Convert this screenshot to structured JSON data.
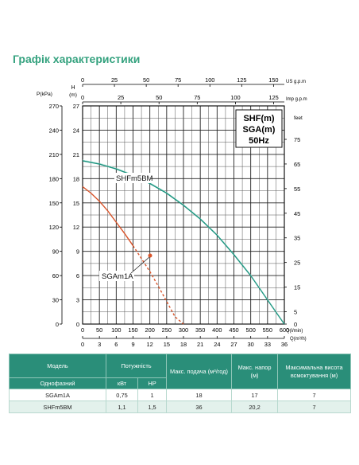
{
  "page_title": "Графік характеристики",
  "chart_data": {
    "type": "line",
    "xlabel": "Q(l/min)",
    "xlabel_m3": "Q(m³/h)",
    "ylabel_m": "(m)",
    "ylabel_m_letter": "H",
    "ylabel_kpa": "P(kPa)",
    "ylabel_feet": "feet",
    "top_axis_usgpm_label": "US g.p.m",
    "top_axis_imp_label": "Imp g.p.m",
    "xlim_lmin": [
      0,
      600
    ],
    "ylim_m": [
      0,
      27
    ],
    "bottom_ticks_lmin": [
      "0",
      "50",
      "100",
      "150",
      "200",
      "250",
      "300",
      "350",
      "400",
      "450",
      "500",
      "550",
      "600"
    ],
    "bottom_ticks_m3h": [
      "0",
      "3",
      "6",
      "9",
      "12",
      "15",
      "18",
      "21",
      "24",
      "27",
      "30",
      "33",
      "36"
    ],
    "top_ticks_usgpm": [
      "0",
      "25",
      "50",
      "75",
      "100",
      "125",
      "150"
    ],
    "top_ticks_imp": [
      "0",
      "25",
      "50",
      "75",
      "100",
      "125"
    ],
    "left_ticks_m": [
      "0",
      "3",
      "6",
      "9",
      "12",
      "15",
      "18",
      "21",
      "24",
      "27"
    ],
    "left_ticks_kpa": [
      "0",
      "30",
      "60",
      "90",
      "120",
      "150",
      "180",
      "210",
      "240",
      "270"
    ],
    "right_ticks_feet": [
      "0",
      "5",
      "15",
      "25",
      "35",
      "45",
      "55",
      "65",
      "75"
    ],
    "grid": true,
    "legend_box": [
      "SHF(m)",
      "SGA(m)",
      "50Hz"
    ],
    "series": [
      {
        "name": "SHFm5BM",
        "color": "#1e9480",
        "dashed": false,
        "x": [
          0,
          50,
          100,
          150,
          200,
          250,
          300,
          350,
          400,
          450,
          500,
          550,
          600
        ],
        "y": [
          20.2,
          19.8,
          19.2,
          18.4,
          17.4,
          16.2,
          14.7,
          13.0,
          11.0,
          8.6,
          6.0,
          3.0,
          0
        ]
      },
      {
        "name": "SGAm1A",
        "color": "#d8542a",
        "dashed_from_x": 170,
        "x": [
          0,
          25,
          50,
          75,
          100,
          125,
          150,
          175,
          200,
          225,
          250,
          275,
          300
        ],
        "y": [
          17.0,
          16.2,
          15.2,
          14.0,
          12.6,
          11.2,
          9.7,
          8.1,
          6.5,
          4.7,
          2.8,
          0.9,
          0
        ]
      }
    ]
  },
  "table": {
    "headers": {
      "model": "Модель",
      "power": "Потужність",
      "max_flow": "Макс. подача (м³/год)",
      "max_head": "Макс. напор (м)",
      "max_suction": "Максимальна висота всмоктування (м)",
      "phase": "Однофазний",
      "kw": "кВт",
      "hp": "HP"
    },
    "rows": [
      {
        "model": "SGAm1A",
        "kw": "0,75",
        "hp": "1",
        "flow": "18",
        "head": "17",
        "suction": "7"
      },
      {
        "model": "SHFm5BM",
        "kw": "1,1",
        "hp": "1,5",
        "flow": "36",
        "head": "20,2",
        "suction": "7"
      }
    ]
  }
}
